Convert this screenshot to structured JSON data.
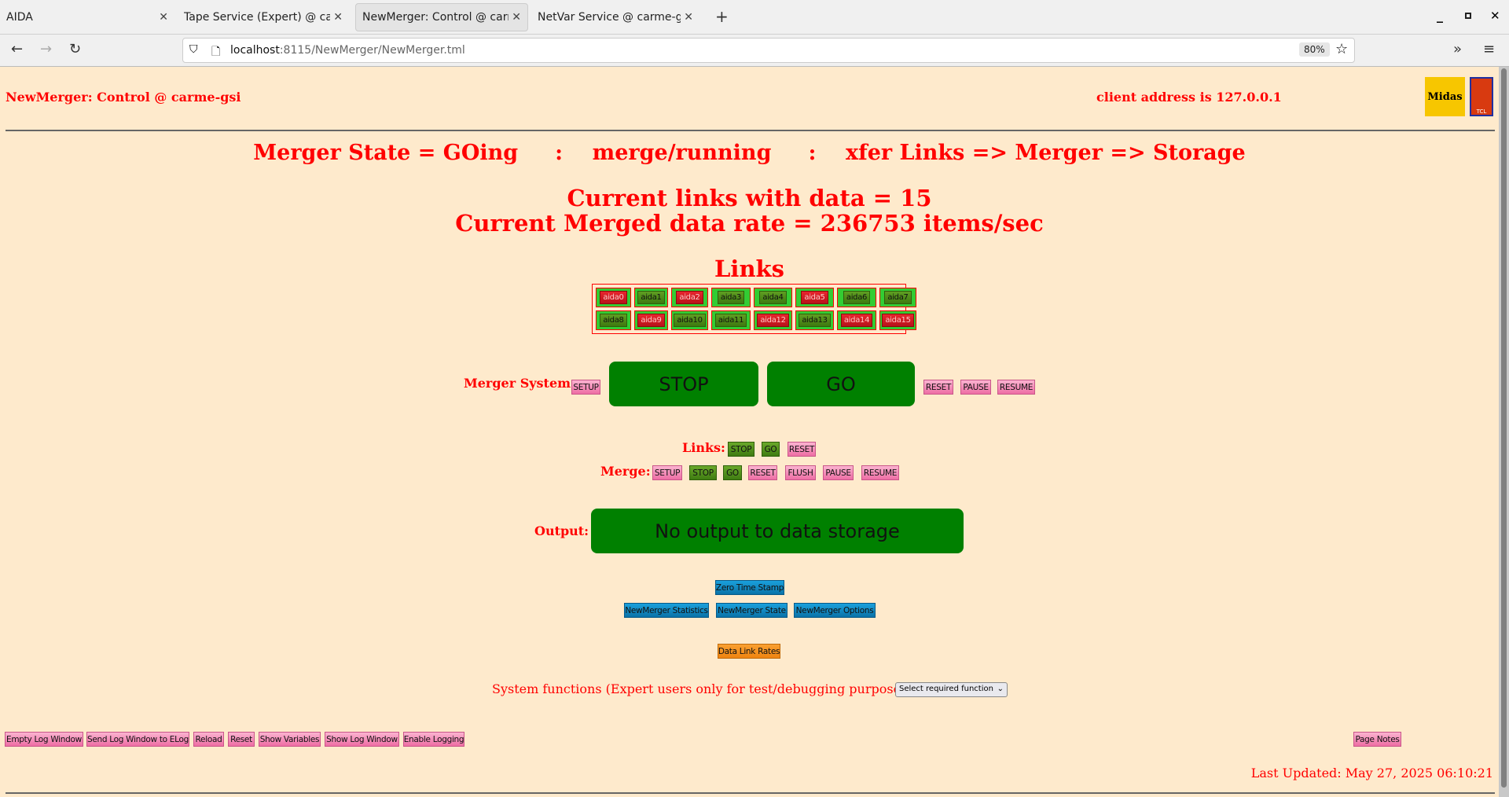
{
  "browser": {
    "tabs": [
      {
        "title": "AIDA",
        "active": false
      },
      {
        "title": "Tape Service (Expert) @ carme-gsi",
        "active": false
      },
      {
        "title": "NewMerger: Control @ carme-gsi",
        "active": true
      },
      {
        "title": "NetVar Service @ carme-gsi",
        "active": false
      }
    ],
    "url_host": "localhost",
    "url_path": ":8115/NewMerger/NewMerger.tml",
    "zoom": "80%"
  },
  "header": {
    "title": "NewMerger: Control @ carme-gsi",
    "client_address": "client address is 127.0.0.1",
    "logos": [
      "Midas",
      "TCL POWERED"
    ]
  },
  "status": {
    "state_line": "Merger State = GOing     :    merge/running     :    xfer Links => Merger => Storage",
    "links_with_data": "Current links with data = 15",
    "rate": "Current Merged data rate = 236753 items/sec"
  },
  "links": {
    "heading": "Links",
    "items": [
      {
        "label": "aida0",
        "state": "red"
      },
      {
        "label": "aida1",
        "state": "green"
      },
      {
        "label": "aida2",
        "state": "red"
      },
      {
        "label": "aida3",
        "state": "green"
      },
      {
        "label": "aida4",
        "state": "green"
      },
      {
        "label": "aida5",
        "state": "red"
      },
      {
        "label": "aida6",
        "state": "green"
      },
      {
        "label": "aida7",
        "state": "green"
      },
      {
        "label": "aida8",
        "state": "green"
      },
      {
        "label": "aida9",
        "state": "red"
      },
      {
        "label": "aida10",
        "state": "green"
      },
      {
        "label": "aida11",
        "state": "green"
      },
      {
        "label": "aida12",
        "state": "red"
      },
      {
        "label": "aida13",
        "state": "green"
      },
      {
        "label": "aida14",
        "state": "red"
      },
      {
        "label": "aida15",
        "state": "red"
      }
    ]
  },
  "merger_system": {
    "label": "Merger System:",
    "setup": "SETUP",
    "stop": "STOP",
    "go": "GO",
    "reset": "RESET",
    "pause": "PAUSE",
    "resume": "RESUME"
  },
  "links_ctrl": {
    "label": "Links:",
    "stop": "STOP",
    "go": "GO",
    "reset": "RESET"
  },
  "merge_ctrl": {
    "label": "Merge:",
    "setup": "SETUP",
    "stop": "STOP",
    "go": "GO",
    "reset": "RESET",
    "flush": "FLUSH",
    "pause": "PAUSE",
    "resume": "RESUME"
  },
  "output": {
    "label": "Output:",
    "value": "No output to data storage"
  },
  "actions": {
    "zero_time": "Zero Time Stamp",
    "stats": "NewMerger Statistics",
    "state": "NewMerger State",
    "options": "NewMerger Options",
    "data_link_rates": "Data Link Rates"
  },
  "system_functions": {
    "text": "System functions (Expert users only for test/debugging purposes!!!)",
    "select_value": "Select required function"
  },
  "footer": {
    "buttons": [
      "Empty Log Window",
      "Send Log Window to ELog",
      "Reload",
      "Reset",
      "Show Variables",
      "Show Log Window",
      "Enable Logging"
    ],
    "page_notes": "Page Notes",
    "last_updated": "Last Updated: May 27, 2025 06:10:21"
  }
}
